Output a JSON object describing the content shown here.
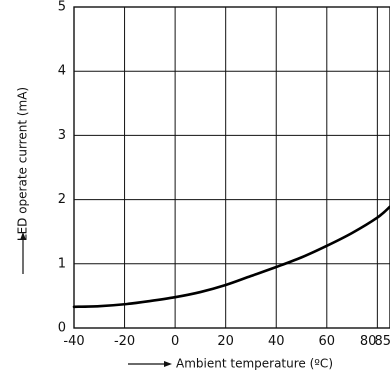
{
  "chart_data": {
    "type": "line",
    "title": "",
    "xlabel": "Ambient temperature (ºC)",
    "ylabel": "LED operate current (mA)",
    "xlim": [
      -40,
      85
    ],
    "ylim": [
      0,
      5
    ],
    "x_ticks": [
      -40,
      -20,
      0,
      20,
      40,
      60,
      80,
      85
    ],
    "x_tick_labels": [
      "-40",
      "-20",
      "0",
      "20",
      "40",
      "60",
      "80",
      "85"
    ],
    "y_ticks": [
      0,
      1,
      2,
      3,
      4,
      5
    ],
    "y_tick_labels": [
      "0",
      "1",
      "2",
      "3",
      "4",
      "5"
    ],
    "grid": true,
    "series": [
      {
        "x": [
          -40,
          -30,
          -20,
          -10,
          0,
          10,
          20,
          30,
          40,
          50,
          60,
          70,
          80,
          85
        ],
        "y": [
          0.33,
          0.34,
          0.37,
          0.42,
          0.48,
          0.56,
          0.67,
          0.81,
          0.95,
          1.1,
          1.28,
          1.48,
          1.72,
          1.89
        ]
      }
    ]
  }
}
